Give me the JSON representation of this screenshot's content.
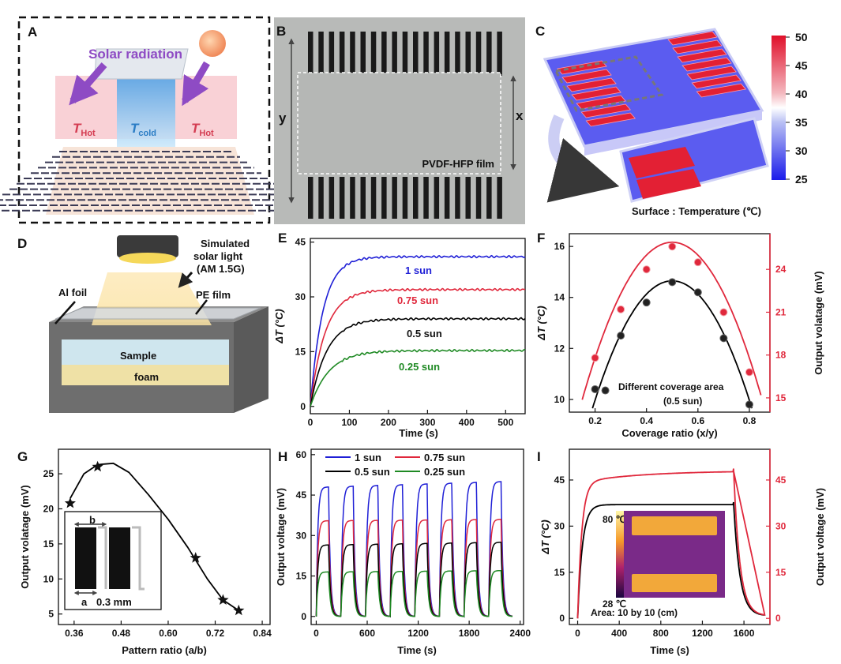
{
  "panels": {
    "A": {
      "label": "A",
      "solar": "Solar radiation",
      "t": "T",
      "hot_sub": "Hot",
      "cold_sub": "cold"
    },
    "B": {
      "label": "B",
      "y": "y",
      "x": "x",
      "film": "PVDF-HFP film"
    },
    "C": {
      "label": "C",
      "caption": "Surface : Temperature (℃)",
      "cbar_ticks": [
        "50",
        "45",
        "40",
        "35",
        "30",
        "25"
      ]
    },
    "D": {
      "label": "D",
      "light_line1": "Simulated",
      "light_line2": "solar light",
      "light_line3": "(AM 1.5G)",
      "foil": "Al foil",
      "pe": "PE film",
      "sample": "Sample",
      "foam": "foam"
    },
    "E": {
      "label": "E"
    },
    "F": {
      "label": "F",
      "note1": "Different coverage area",
      "note2": "(0.5 sun)"
    },
    "G": {
      "label": "G",
      "inset_b": "b",
      "inset_a": "a",
      "inset_gap": "0.3 mm"
    },
    "H": {
      "label": "H"
    },
    "I": {
      "label": "I",
      "inset_max": "80 ℃",
      "inset_min": "28 ℃",
      "area": "Area: 10 by 10  (cm)"
    }
  },
  "colors": {
    "blue": "#1f1fd6",
    "red": "#e0283c",
    "black": "#000000",
    "green": "#1f8a24"
  },
  "chart_data": [
    {
      "panel": "E",
      "type": "line",
      "xlabel": "Time (s)",
      "ylabel": "ΔT (°C)",
      "xlim": [
        0,
        550
      ],
      "ylim": [
        -2,
        46
      ],
      "xticks": [
        "0",
        "100",
        "200",
        "300",
        "400",
        "500"
      ],
      "yticks": [
        "0",
        "15",
        "30",
        "45"
      ],
      "series": [
        {
          "name": "1 sun",
          "color": "#1f1fd6",
          "plateau": 41,
          "tau": 32
        },
        {
          "name": "0.75 sun",
          "color": "#e0283c",
          "plateau": 32,
          "tau": 38
        },
        {
          "name": "0.5 sun",
          "color": "#000000",
          "plateau": 24,
          "tau": 42
        },
        {
          "name": "0.25 sun",
          "color": "#1f8a24",
          "plateau": 15.3,
          "tau": 48
        }
      ]
    },
    {
      "panel": "F",
      "type": "scatter",
      "xlabel": "Coverage ratio (x/y)",
      "ylabel": "ΔT (°C)",
      "y2label": "Output volatage (mV)",
      "xlim": [
        0.1,
        0.88
      ],
      "ylim": [
        9.5,
        16.5
      ],
      "y2lim": [
        14.0,
        26.5
      ],
      "xticks": [
        "0.2",
        "0.4",
        "0.6",
        "0.8"
      ],
      "yticks": [
        "10",
        "12",
        "14",
        "16"
      ],
      "y2ticks": [
        "15",
        "18",
        "21",
        "24"
      ],
      "series": [
        {
          "name": "ΔT",
          "axis": "left",
          "color": "#000000",
          "x": [
            0.2,
            0.24,
            0.3,
            0.4,
            0.5,
            0.6,
            0.7,
            0.8
          ],
          "y": [
            10.4,
            10.35,
            12.5,
            13.8,
            14.6,
            14.2,
            12.4,
            9.8
          ]
        },
        {
          "name": "Output voltage",
          "axis": "right",
          "color": "#e0283c",
          "x": [
            0.2,
            0.3,
            0.4,
            0.5,
            0.6,
            0.7,
            0.8
          ],
          "y": [
            17.8,
            21.2,
            24.0,
            25.6,
            24.5,
            21.0,
            16.8
          ]
        }
      ]
    },
    {
      "panel": "G",
      "type": "scatter",
      "xlabel": "Pattern ratio (a/b)",
      "ylabel": "Output volatage (mV)",
      "xlim": [
        0.32,
        0.86
      ],
      "ylim": [
        3.5,
        28.5
      ],
      "xticks": [
        "0.36",
        "0.48",
        "0.60",
        "0.72",
        "0.84"
      ],
      "yticks": [
        "5",
        "10",
        "15",
        "20",
        "25"
      ],
      "x": [
        0.35,
        0.42,
        0.67,
        0.74,
        0.78
      ],
      "y": [
        20.8,
        26.0,
        13.0,
        7.0,
        5.5
      ]
    },
    {
      "panel": "H",
      "type": "line",
      "xlabel": "Time (s)",
      "ylabel": "Output voltage (mV)",
      "xlim": [
        -60,
        2440
      ],
      "ylim": [
        -3,
        62
      ],
      "xticks": [
        "0",
        "600",
        "1200",
        "1800",
        "2400"
      ],
      "yticks": [
        "0",
        "15",
        "30",
        "45",
        "60"
      ],
      "cycle_period": 290,
      "cycles": 8,
      "series": [
        {
          "name": "1 sun",
          "color": "#1f1fd6",
          "peak_first": 48,
          "peak_last": 50
        },
        {
          "name": "0.75 sun",
          "color": "#e0283c",
          "peak_first": 35.5,
          "peak_last": 36
        },
        {
          "name": "0.5 sun",
          "color": "#000000",
          "peak_first": 26.5,
          "peak_last": 27.5
        },
        {
          "name": "0.25 sun",
          "color": "#1f8a24",
          "peak_first": 16.5,
          "peak_last": 17
        }
      ]
    },
    {
      "panel": "I",
      "type": "line",
      "xlabel": "Time (s)",
      "ylabel": "ΔT (°C)",
      "y2label": "Output voltage (mV)",
      "xlim": [
        -80,
        1850
      ],
      "ylim": [
        -2,
        55
      ],
      "y2lim": [
        -2,
        55
      ],
      "xticks": [
        "0",
        "400",
        "800",
        "1200",
        "1600"
      ],
      "yticks": [
        "0",
        "15",
        "30",
        "45"
      ],
      "y2ticks": [
        "0",
        "15",
        "30",
        "45"
      ],
      "light_off": 1500,
      "series": [
        {
          "name": "ΔT",
          "axis": "left",
          "color": "#000000",
          "plateau": 37
        },
        {
          "name": "Output voltage",
          "axis": "right",
          "color": "#e0283c",
          "plateau": 48
        }
      ]
    }
  ]
}
